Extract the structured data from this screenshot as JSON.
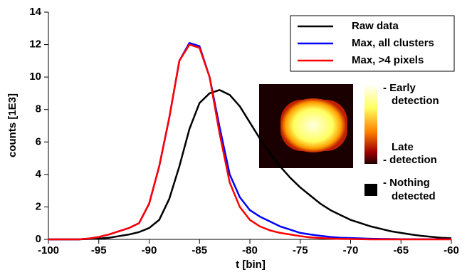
{
  "chart_data": {
    "type": "line",
    "xlabel": "t [bin]",
    "ylabel": "counts [1E3]",
    "x": [
      -100,
      -99,
      -98,
      -97,
      -96,
      -95,
      -94,
      -93,
      -92,
      -91,
      -90,
      -89,
      -88,
      -87,
      -86,
      -85,
      -84,
      -83,
      -82,
      -81,
      -80,
      -79,
      -78,
      -77,
      -76,
      -75,
      -74,
      -73,
      -72,
      -71,
      -70,
      -69,
      -68,
      -67,
      -66,
      -65,
      -64,
      -63,
      -62,
      -61,
      -60
    ],
    "series": [
      {
        "name": "Raw data",
        "color": "#000000",
        "values": [
          0,
          0,
          0,
          0,
          0.02,
          0.05,
          0.1,
          0.2,
          0.3,
          0.45,
          0.7,
          1.2,
          2.5,
          4.5,
          6.8,
          8.4,
          9.0,
          9.2,
          8.9,
          8.2,
          7.2,
          6.2,
          5.3,
          4.5,
          3.8,
          3.2,
          2.7,
          2.2,
          1.8,
          1.5,
          1.2,
          1.0,
          0.8,
          0.65,
          0.5,
          0.4,
          0.3,
          0.22,
          0.16,
          0.1,
          0.07
        ]
      },
      {
        "name": "Max, all clusters",
        "color": "#0000ff",
        "values": [
          0,
          0,
          0,
          0,
          0.05,
          0.15,
          0.3,
          0.5,
          0.7,
          1.0,
          2.2,
          4.5,
          7.5,
          11.0,
          12.1,
          11.9,
          10.0,
          6.9,
          4.0,
          2.6,
          1.8,
          1.4,
          1.1,
          0.8,
          0.6,
          0.4,
          0.3,
          0.22,
          0.15,
          0.1,
          0.08,
          0.06,
          0.04,
          0.03,
          0.02,
          0.01,
          0.01,
          0.01,
          0.01,
          0.01,
          0.01
        ]
      },
      {
        "name": "Max, >4 pixels",
        "color": "#ff0000",
        "values": [
          0,
          0,
          0,
          0,
          0.05,
          0.15,
          0.3,
          0.5,
          0.7,
          1.0,
          2.2,
          4.5,
          7.5,
          11.0,
          12.0,
          11.8,
          10.0,
          6.5,
          3.5,
          2.0,
          1.2,
          0.8,
          0.55,
          0.4,
          0.3,
          0.2,
          0.12,
          0.08,
          0.05,
          0.03,
          0.02,
          0.01,
          0,
          0,
          0,
          0,
          0,
          0,
          0,
          0,
          0
        ]
      }
    ],
    "xlim": [
      -100,
      -60
    ],
    "xticks": [
      -100,
      -95,
      -90,
      -85,
      -80,
      -75,
      -70,
      -65,
      -60
    ],
    "ylim": [
      0,
      14
    ],
    "yticks": [
      0,
      2,
      4,
      6,
      8,
      10,
      12,
      14
    ],
    "legend": "upper right",
    "colorbar_labels": [
      "- Early",
      "detection",
      "Late",
      "- detection",
      "- Nothing",
      "detected"
    ]
  }
}
